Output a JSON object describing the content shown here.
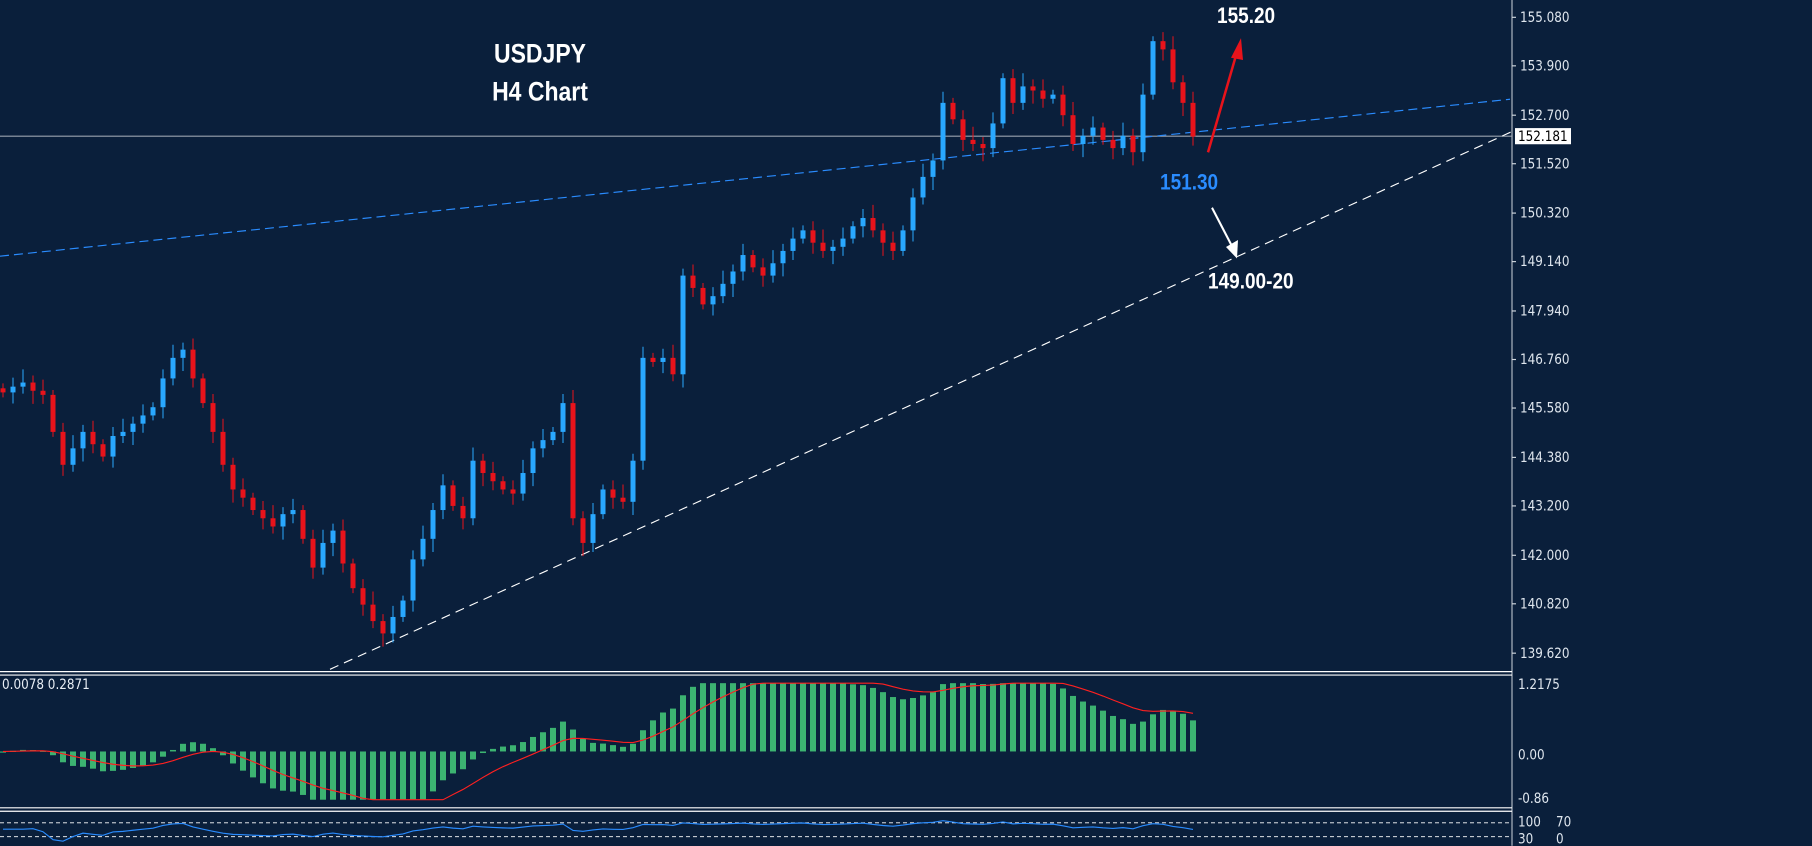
{
  "title": {
    "symbol": "USDJPY",
    "timeframe": "H4 Chart"
  },
  "annotations": {
    "target_up": "155.20",
    "support_1": "151.30",
    "support_2": "149.00-20"
  },
  "current_price": "152.181",
  "indicator_label": "0.0078 0.2871",
  "colors": {
    "background": "#0a1f3b",
    "bull": "#29a8ff",
    "bear": "#e8131b",
    "macd_hist": "#3cb371",
    "signal": "#ff2020",
    "trend_blue": "#2a8cff",
    "rsi": "#2a8cff"
  },
  "chart_data": {
    "type": "candlestick",
    "symbol": "USDJPY",
    "timeframe": "H4",
    "ylim": [
      139.62,
      155.08
    ],
    "y_ticks": [
      "155.080",
      "153.900",
      "152.700",
      "151.520",
      "150.320",
      "149.140",
      "147.940",
      "146.760",
      "145.580",
      "144.380",
      "143.200",
      "142.000",
      "140.820",
      "139.620"
    ],
    "closes": [
      145.96,
      146.1,
      146.2,
      146.0,
      145.9,
      145.0,
      144.2,
      144.6,
      145.0,
      144.7,
      144.4,
      144.9,
      145.0,
      145.2,
      145.4,
      145.6,
      146.3,
      146.8,
      147.0,
      146.3,
      145.7,
      145.0,
      144.2,
      143.6,
      143.4,
      143.1,
      142.9,
      142.7,
      143.0,
      143.1,
      142.4,
      141.7,
      142.3,
      142.6,
      141.8,
      141.2,
      140.8,
      140.4,
      140.1,
      140.5,
      140.9,
      141.9,
      142.4,
      143.1,
      143.7,
      143.2,
      142.9,
      144.3,
      144.0,
      143.8,
      143.6,
      143.5,
      144.0,
      144.6,
      144.8,
      145.0,
      145.7,
      142.9,
      142.3,
      143.0,
      143.6,
      143.4,
      143.3,
      144.3,
      146.8,
      146.7,
      146.8,
      146.4,
      148.8,
      148.5,
      148.1,
      148.3,
      148.6,
      148.9,
      149.3,
      149.0,
      148.8,
      149.1,
      149.4,
      149.7,
      149.9,
      149.6,
      149.4,
      149.5,
      149.7,
      150.0,
      150.2,
      149.9,
      149.6,
      149.4,
      149.9,
      150.7,
      151.2,
      151.6,
      153.0,
      152.6,
      152.1,
      152.0,
      151.9,
      152.5,
      153.6,
      153.0,
      153.4,
      153.3,
      153.1,
      153.2,
      152.7,
      152.0,
      152.2,
      152.4,
      152.1,
      151.9,
      152.2,
      151.8,
      153.2,
      154.5,
      154.3,
      153.5,
      153.0,
      152.181
    ],
    "macd_panel": {
      "ticks": [
        "1.2175",
        "0.00",
        "-0.86"
      ],
      "ylim": [
        -0.86,
        1.2175
      ]
    },
    "rsi_panel": {
      "levels": [
        "100",
        "70",
        "30",
        "0"
      ]
    }
  }
}
